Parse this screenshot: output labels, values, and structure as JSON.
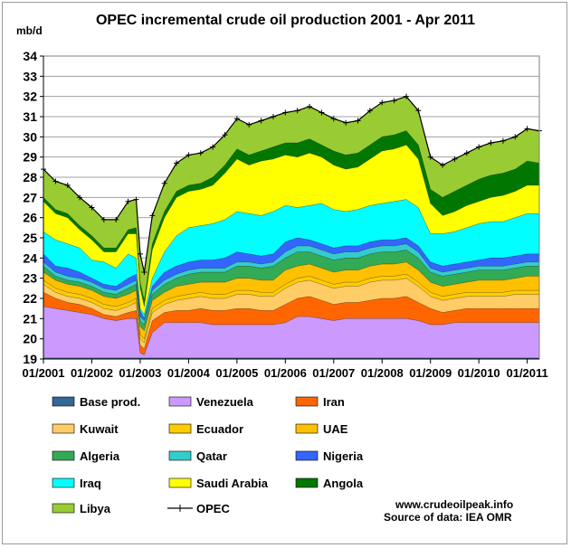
{
  "chart_data": {
    "type": "area",
    "title": "OPEC incremental crude oil production 2001 - Apr 2011",
    "ylabel": "mb/d",
    "xlabel": "",
    "ylim": [
      19,
      34
    ],
    "xlim": [
      "2001-01",
      "2011-04"
    ],
    "y_ticks": [
      19,
      20,
      21,
      22,
      23,
      24,
      25,
      26,
      27,
      28,
      29,
      30,
      31,
      32,
      33,
      34
    ],
    "x_ticks": [
      "01/2001",
      "01/2002",
      "01/2003",
      "01/2004",
      "01/2005",
      "01/2006",
      "01/2007",
      "01/2008",
      "01/2009",
      "01/2010",
      "01/2011"
    ],
    "grid": "horizontal",
    "legend_position": "bottom",
    "x_dates": [
      "2001-01",
      "2001-04",
      "2001-07",
      "2001-10",
      "2002-01",
      "2002-04",
      "2002-07",
      "2002-10",
      "2002-12",
      "2003-01",
      "2003-02",
      "2003-04",
      "2003-07",
      "2003-10",
      "2004-01",
      "2004-04",
      "2004-07",
      "2004-10",
      "2005-01",
      "2005-04",
      "2005-07",
      "2005-10",
      "2006-01",
      "2006-04",
      "2006-07",
      "2006-10",
      "2007-01",
      "2007-04",
      "2007-07",
      "2007-10",
      "2008-01",
      "2008-04",
      "2008-07",
      "2008-10",
      "2009-01",
      "2009-04",
      "2009-07",
      "2009-10",
      "2010-01",
      "2010-04",
      "2010-07",
      "2010-10",
      "2011-01",
      "2011-04"
    ],
    "series": [
      {
        "name": "Base prod.",
        "color": "#336699",
        "values": [
          19.05,
          19.05,
          19.05,
          19.05,
          19.05,
          19.05,
          19.05,
          19.05,
          19.05,
          19.05,
          19.05,
          19.05,
          19.05,
          19.05,
          19.05,
          19.05,
          19.05,
          19.05,
          19.05,
          19.05,
          19.05,
          19.05,
          19.05,
          19.05,
          19.05,
          19.05,
          19.05,
          19.05,
          19.05,
          19.05,
          19.05,
          19.05,
          19.05,
          19.05,
          19.05,
          19.05,
          19.05,
          19.05,
          19.05,
          19.05,
          19.05,
          19.05,
          19.05,
          19.05
        ]
      },
      {
        "name": "Venezuela",
        "color": "#cc99ff",
        "values": [
          21.6,
          21.5,
          21.4,
          21.3,
          21.2,
          21.0,
          20.9,
          21.0,
          21.0,
          19.3,
          19.2,
          20.3,
          20.8,
          20.8,
          20.8,
          20.8,
          20.7,
          20.7,
          20.7,
          20.7,
          20.7,
          20.7,
          20.8,
          21.1,
          21.1,
          21.0,
          20.9,
          21.0,
          21.0,
          21.0,
          21.0,
          21.0,
          21.0,
          20.9,
          20.7,
          20.7,
          20.8,
          20.8,
          20.8,
          20.8,
          20.8,
          20.8,
          20.8,
          20.8
        ]
      },
      {
        "name": "Iran",
        "color": "#ff6600",
        "values": [
          22.3,
          22.0,
          21.8,
          21.7,
          21.5,
          21.2,
          21.1,
          21.3,
          21.4,
          19.7,
          19.5,
          20.9,
          21.3,
          21.4,
          21.4,
          21.5,
          21.4,
          21.4,
          21.5,
          21.5,
          21.4,
          21.4,
          21.7,
          22.0,
          22.1,
          21.9,
          21.7,
          21.8,
          21.8,
          21.9,
          22.0,
          22.0,
          22.1,
          21.8,
          21.5,
          21.3,
          21.4,
          21.5,
          21.5,
          21.5,
          21.5,
          21.5,
          21.5,
          21.5
        ]
      },
      {
        "name": "Kuwait",
        "color": "#ffcc66",
        "values": [
          22.7,
          22.3,
          22.1,
          22.0,
          21.8,
          21.5,
          21.4,
          21.6,
          21.8,
          20.0,
          19.8,
          21.3,
          21.7,
          21.9,
          22.0,
          22.1,
          22.0,
          22.0,
          22.2,
          22.2,
          22.1,
          22.1,
          22.5,
          22.8,
          22.9,
          22.7,
          22.5,
          22.6,
          22.6,
          22.8,
          22.9,
          22.9,
          23.0,
          22.6,
          22.1,
          21.9,
          22.0,
          22.1,
          22.1,
          22.1,
          22.1,
          22.2,
          22.2,
          22.2
        ]
      },
      {
        "name": "Ecuador",
        "color": "#ffcc00",
        "values": [
          22.9,
          22.5,
          22.3,
          22.2,
          22.0,
          21.7,
          21.6,
          21.8,
          22.0,
          20.2,
          20.0,
          21.5,
          21.9,
          22.1,
          22.2,
          22.3,
          22.2,
          22.2,
          22.4,
          22.4,
          22.3,
          22.3,
          22.7,
          23.0,
          23.1,
          22.9,
          22.7,
          22.8,
          22.8,
          23.0,
          23.1,
          23.1,
          23.2,
          22.8,
          22.3,
          22.1,
          22.2,
          22.3,
          22.3,
          22.3,
          22.3,
          22.4,
          22.4,
          22.4
        ]
      },
      {
        "name": "UAE",
        "color": "#ffc000",
        "values": [
          23.3,
          22.9,
          22.7,
          22.6,
          22.4,
          22.1,
          22.0,
          22.2,
          22.4,
          20.6,
          20.4,
          21.9,
          22.3,
          22.6,
          22.7,
          22.8,
          22.8,
          22.8,
          23.0,
          23.0,
          22.9,
          22.9,
          23.4,
          23.6,
          23.7,
          23.5,
          23.3,
          23.4,
          23.4,
          23.6,
          23.7,
          23.7,
          23.8,
          23.4,
          22.8,
          22.6,
          22.7,
          22.8,
          22.9,
          22.9,
          22.9,
          23.0,
          23.1,
          23.1
        ]
      },
      {
        "name": "Algeria",
        "color": "#33aa55",
        "values": [
          23.6,
          23.1,
          22.9,
          22.8,
          22.6,
          22.3,
          22.2,
          22.5,
          22.7,
          20.9,
          20.7,
          22.2,
          22.7,
          23.0,
          23.2,
          23.3,
          23.3,
          23.3,
          23.6,
          23.6,
          23.5,
          23.6,
          24.0,
          24.3,
          24.3,
          24.1,
          23.9,
          24.0,
          24.0,
          24.2,
          24.3,
          24.3,
          24.4,
          24.0,
          23.3,
          23.1,
          23.2,
          23.3,
          23.4,
          23.4,
          23.4,
          23.5,
          23.6,
          23.6
        ]
      },
      {
        "name": "Qatar",
        "color": "#33cccc",
        "values": [
          23.8,
          23.3,
          23.1,
          23.0,
          22.8,
          22.5,
          22.4,
          22.7,
          22.9,
          21.1,
          20.9,
          22.4,
          22.9,
          23.2,
          23.4,
          23.5,
          23.5,
          23.5,
          23.8,
          23.8,
          23.7,
          23.8,
          24.3,
          24.6,
          24.6,
          24.4,
          24.2,
          24.3,
          24.3,
          24.5,
          24.6,
          24.6,
          24.7,
          24.3,
          23.5,
          23.3,
          23.4,
          23.5,
          23.6,
          23.6,
          23.6,
          23.7,
          23.8,
          23.8
        ]
      },
      {
        "name": "Nigeria",
        "color": "#3366ff",
        "values": [
          24.2,
          23.6,
          23.5,
          23.3,
          23.0,
          22.7,
          22.6,
          23.0,
          23.2,
          21.4,
          21.0,
          22.6,
          23.3,
          23.6,
          23.8,
          23.9,
          23.9,
          24.0,
          24.3,
          24.2,
          24.1,
          24.2,
          24.8,
          25.0,
          24.9,
          24.7,
          24.5,
          24.6,
          24.6,
          24.8,
          24.9,
          24.9,
          25.0,
          24.6,
          23.8,
          23.6,
          23.7,
          23.8,
          23.9,
          24.0,
          24.0,
          24.1,
          24.2,
          24.2
        ]
      },
      {
        "name": "Iraq",
        "color": "#00ffff",
        "values": [
          25.3,
          24.9,
          24.7,
          24.5,
          23.9,
          23.8,
          23.5,
          24.2,
          24.0,
          21.5,
          21.2,
          23.0,
          24.3,
          25.1,
          25.5,
          25.6,
          25.7,
          25.9,
          26.3,
          26.2,
          26.1,
          26.3,
          26.6,
          26.5,
          26.6,
          26.7,
          26.4,
          26.3,
          26.4,
          26.6,
          26.7,
          26.8,
          26.9,
          26.5,
          25.2,
          25.2,
          25.3,
          25.5,
          25.7,
          25.8,
          25.8,
          26.0,
          26.2,
          26.2
        ]
      },
      {
        "name": "Saudi Arabia",
        "color": "#ffff00",
        "values": [
          26.8,
          26.2,
          26.0,
          25.4,
          24.9,
          24.3,
          24.3,
          25.2,
          25.2,
          22.5,
          21.6,
          24.4,
          26.0,
          27.0,
          27.3,
          27.4,
          27.6,
          28.2,
          28.9,
          28.6,
          28.8,
          28.9,
          29.1,
          29.0,
          29.2,
          29.0,
          28.6,
          28.4,
          28.5,
          28.9,
          29.3,
          29.4,
          29.6,
          28.9,
          26.7,
          26.1,
          26.3,
          26.6,
          26.8,
          27.0,
          27.1,
          27.3,
          27.6,
          27.6
        ]
      },
      {
        "name": "Angola",
        "color": "#007700",
        "values": [
          27.0,
          26.4,
          26.2,
          25.6,
          25.1,
          24.5,
          24.5,
          25.4,
          25.5,
          22.8,
          21.9,
          24.7,
          26.3,
          27.3,
          27.6,
          27.7,
          28.0,
          28.6,
          29.4,
          29.1,
          29.3,
          29.5,
          29.7,
          29.7,
          29.9,
          29.6,
          29.3,
          29.1,
          29.2,
          29.6,
          30.0,
          30.1,
          30.3,
          29.6,
          27.4,
          27.0,
          27.3,
          27.6,
          27.9,
          28.1,
          28.2,
          28.4,
          28.8,
          28.7
        ]
      },
      {
        "name": "Libya",
        "color": "#99cc33",
        "values": [
          28.4,
          27.8,
          27.6,
          27.0,
          26.5,
          25.9,
          25.9,
          26.8,
          26.9,
          24.2,
          23.3,
          26.1,
          27.7,
          28.7,
          29.1,
          29.2,
          29.5,
          30.1,
          30.9,
          30.6,
          30.8,
          31.0,
          31.2,
          31.3,
          31.5,
          31.2,
          30.9,
          30.7,
          30.8,
          31.3,
          31.7,
          31.8,
          32.0,
          31.3,
          29.0,
          28.6,
          28.9,
          29.2,
          29.5,
          29.7,
          29.8,
          30.0,
          30.4,
          30.3
        ]
      },
      {
        "name": "OPEC",
        "color": "#000000",
        "values": [
          28.4,
          27.8,
          27.6,
          27.0,
          26.5,
          25.9,
          25.9,
          26.8,
          26.9,
          24.2,
          23.3,
          26.1,
          27.7,
          28.7,
          29.1,
          29.2,
          29.5,
          30.1,
          30.9,
          30.6,
          30.8,
          31.0,
          31.2,
          31.3,
          31.5,
          31.2,
          30.9,
          30.7,
          30.8,
          31.3,
          31.7,
          31.8,
          32.0,
          31.3,
          29.0,
          28.6,
          28.9,
          29.2,
          29.5,
          29.7,
          29.8,
          30.0,
          30.4,
          30.3
        ]
      }
    ]
  },
  "header": {
    "title": "OPEC incremental crude oil production 2001 - Apr 2011",
    "y_unit": "mb/d"
  },
  "source": {
    "website": "www.crudeoilpeak.info",
    "credit": "Source of data: IEA OMR"
  }
}
